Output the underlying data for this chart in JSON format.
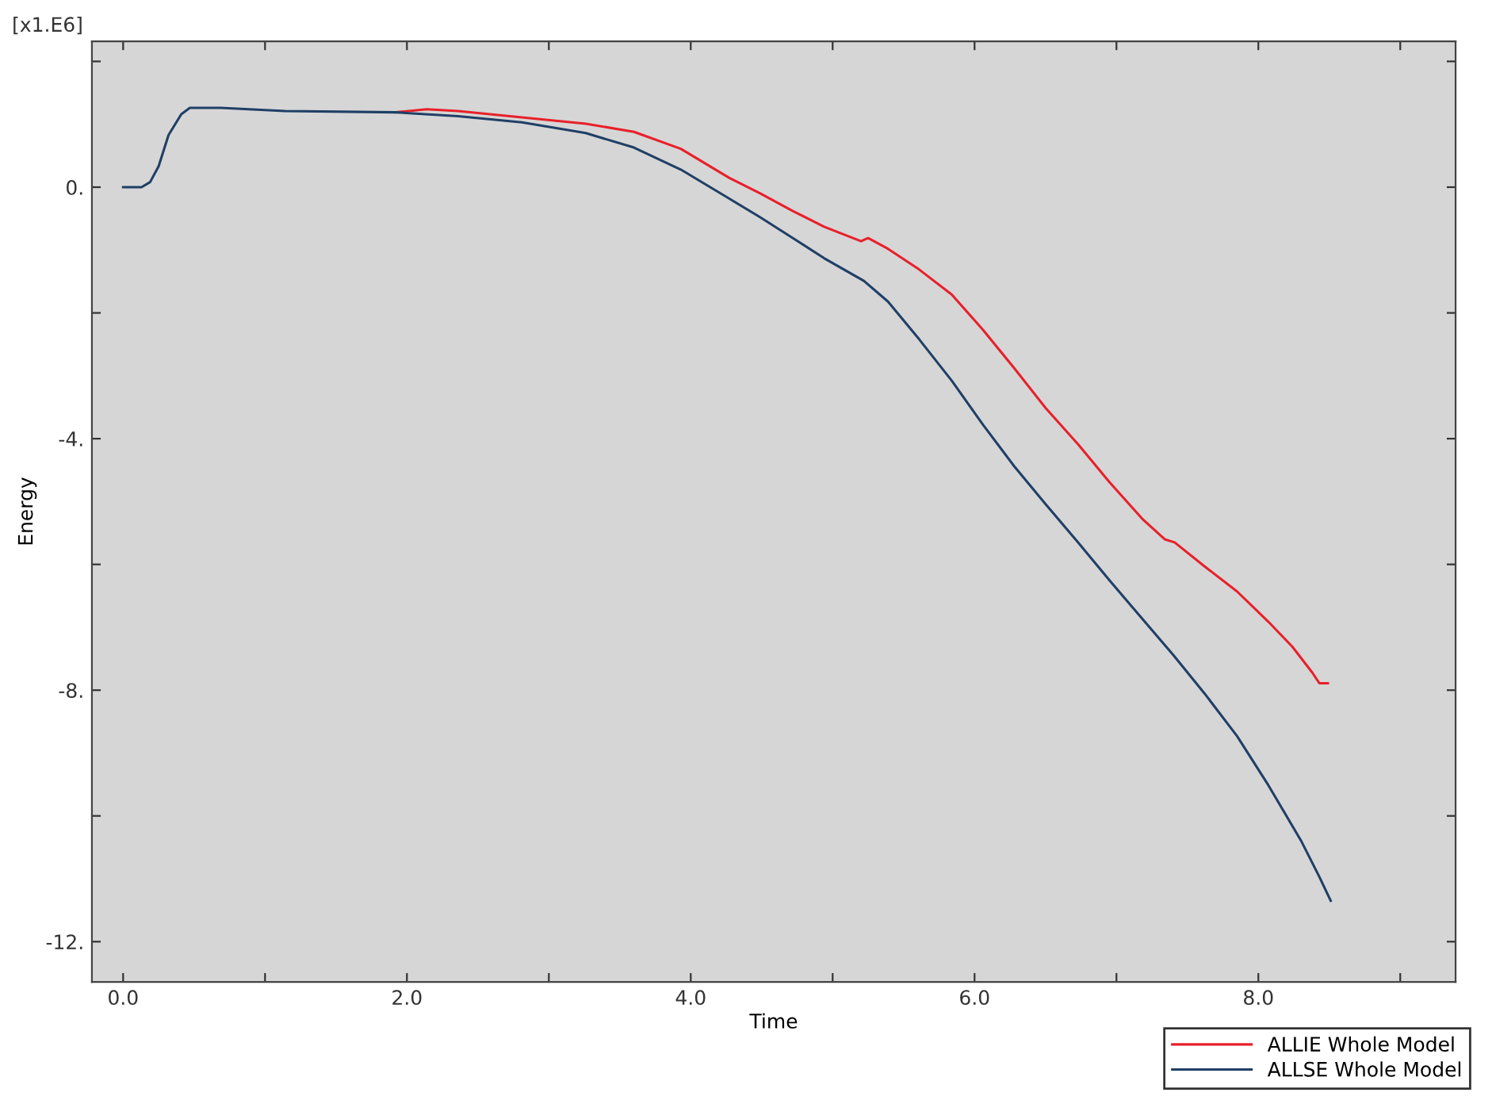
{
  "chart_data": {
    "type": "line",
    "xlabel": "Time",
    "ylabel": "Energy",
    "annotations": [
      "[x1.E6]"
    ],
    "xlim": [
      -0.22,
      9.39
    ],
    "ylim": [
      -12.64,
      2.32
    ],
    "xticks": [
      {
        "value": 0,
        "label": "0.0"
      },
      {
        "value": 1,
        "label": null
      },
      {
        "value": 2,
        "label": "2.0"
      },
      {
        "value": 3,
        "label": null
      },
      {
        "value": 4,
        "label": "4.0"
      },
      {
        "value": 5,
        "label": null
      },
      {
        "value": 6,
        "label": "6.0"
      },
      {
        "value": 7,
        "label": null
      },
      {
        "value": 8,
        "label": "8.0"
      },
      {
        "value": 9,
        "label": null
      }
    ],
    "yticks": [
      {
        "value": 2,
        "label": null
      },
      {
        "value": 0,
        "label": "0."
      },
      {
        "value": -2,
        "label": null
      },
      {
        "value": -4,
        "label": "-4."
      },
      {
        "value": -6,
        "label": null
      },
      {
        "value": -8,
        "label": "-8."
      },
      {
        "value": -10,
        "label": null
      },
      {
        "value": -12,
        "label": "-12."
      }
    ],
    "grid": false,
    "legend": "bottom right",
    "marker": "none",
    "line_style": "solid",
    "series": [
      {
        "name": "ALLIE Whole Model",
        "color": "#e8202a",
        "x": [
          1.92,
          2.14,
          2.36,
          2.81,
          3.26,
          3.6,
          3.93,
          4.27,
          4.49,
          4.72,
          4.94,
          5.2,
          5.25,
          5.39,
          5.61,
          5.84,
          6.06,
          6.28,
          6.5,
          6.73,
          6.95,
          7.18,
          7.34,
          7.41,
          7.62,
          7.85,
          8.07,
          8.24,
          8.38,
          8.43,
          8.49
        ],
        "values": [
          1.19,
          1.24,
          1.21,
          1.11,
          1.01,
          0.88,
          0.61,
          0.15,
          -0.1,
          -0.38,
          -0.63,
          -0.86,
          -0.81,
          -0.98,
          -1.31,
          -1.71,
          -2.27,
          -2.88,
          -3.51,
          -4.09,
          -4.69,
          -5.27,
          -5.6,
          -5.65,
          -6.03,
          -6.43,
          -6.91,
          -7.31,
          -7.72,
          -7.89,
          -7.89
        ]
      },
      {
        "name": "ALLSE Whole Model",
        "color": "#1f3f66",
        "x": [
          0,
          0.13,
          0.19,
          0.25,
          0.32,
          0.41,
          0.47,
          0.69,
          1.14,
          1.92,
          2.36,
          2.81,
          3.26,
          3.6,
          3.93,
          4.27,
          4.49,
          4.72,
          4.94,
          5.22,
          5.39,
          5.61,
          5.84,
          6.06,
          6.28,
          6.5,
          6.73,
          6.95,
          7.18,
          7.4,
          7.62,
          7.85,
          8.07,
          8.3,
          8.43,
          8.51
        ],
        "values": [
          0,
          0,
          0.08,
          0.33,
          0.83,
          1.16,
          1.26,
          1.26,
          1.21,
          1.19,
          1.13,
          1.03,
          0.86,
          0.63,
          0.28,
          -0.18,
          -0.48,
          -0.81,
          -1.13,
          -1.49,
          -1.82,
          -2.42,
          -3.08,
          -3.78,
          -4.44,
          -5.04,
          -5.65,
          -6.25,
          -6.86,
          -7.44,
          -8.05,
          -8.73,
          -9.51,
          -10.39,
          -10.97,
          -11.35
        ]
      }
    ]
  }
}
